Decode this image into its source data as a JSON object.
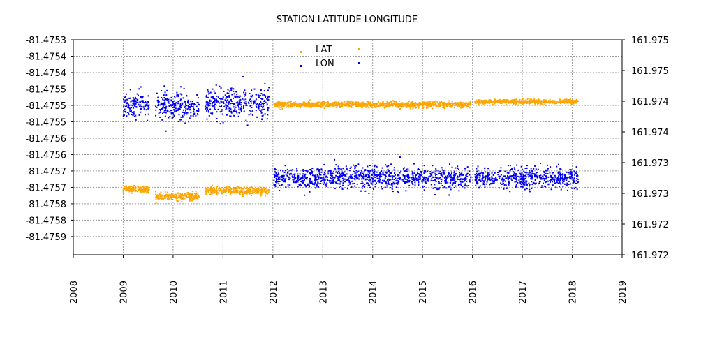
{
  "chart_data": {
    "type": "scatter",
    "title": "STATION LATITUDE LONGITUDE",
    "x_ticks": [
      "2008",
      "2009",
      "2010",
      "2011",
      "2012",
      "2013",
      "2014",
      "2015",
      "2016",
      "2017",
      "2018",
      "2019"
    ],
    "xlim": [
      2008,
      2019
    ],
    "left_axis": {
      "ylim": [
        -81.4759,
        -81.47531
      ],
      "tick_values": [
        -81.47531,
        -81.475355,
        -81.4754,
        -81.475445,
        -81.47549,
        -81.475535,
        -81.47558,
        -81.475625,
        -81.47567,
        -81.475715,
        -81.47576,
        -81.475805,
        -81.47585
      ],
      "tick_labels": [
        "-81.4753",
        "-81.4754",
        "-81.4754",
        "-81.4755",
        "-81.4755",
        "-81.4755",
        "-81.4756",
        "-81.4756",
        "-81.4757",
        "-81.4757",
        "-81.4758",
        "-81.4758",
        "-81.4759"
      ]
    },
    "right_axis": {
      "ylim": [
        161.9715,
        161.975
      ],
      "tick_values": [
        161.975,
        161.9745,
        161.974,
        161.9735,
        161.973,
        161.9725,
        161.972,
        161.9715
      ],
      "tick_labels": [
        "161.975",
        "161.975",
        "161.974",
        "161.974",
        "161.973",
        "161.973",
        "161.972",
        "161.972"
      ]
    },
    "grid": true,
    "legend_position": "top-center",
    "series": [
      {
        "name": "LAT",
        "axis": "left",
        "color": "#ffa500",
        "segments": [
          {
            "from": 2009.0,
            "to": 2009.52,
            "level": -81.47572,
            "spread": 4.5e-06
          },
          {
            "from": 2009.65,
            "to": 2010.52,
            "level": -81.47574,
            "spread": 5e-06
          },
          {
            "from": 2010.65,
            "to": 2011.92,
            "level": -81.475725,
            "spread": 5e-06
          },
          {
            "from": 2012.02,
            "to": 2015.97,
            "level": -81.475488,
            "spread": 4e-06
          },
          {
            "from": 2016.05,
            "to": 2018.12,
            "level": -81.47548,
            "spread": 3e-06
          }
        ]
      },
      {
        "name": "LON",
        "axis": "right",
        "color": "#0000ee",
        "segments": [
          {
            "from": 2009.0,
            "to": 2009.52,
            "level": 161.97395,
            "spread": 0.0001
          },
          {
            "from": 2009.65,
            "to": 2010.52,
            "level": 161.97392,
            "spread": 0.00012
          },
          {
            "from": 2010.65,
            "to": 2011.92,
            "level": 161.97397,
            "spread": 0.00012
          },
          {
            "from": 2012.02,
            "to": 2015.97,
            "level": 161.97275,
            "spread": 9e-05
          },
          {
            "from": 2016.05,
            "to": 2018.12,
            "level": 161.97275,
            "spread": 8e-05
          }
        ]
      }
    ],
    "points_per_year": 260
  }
}
